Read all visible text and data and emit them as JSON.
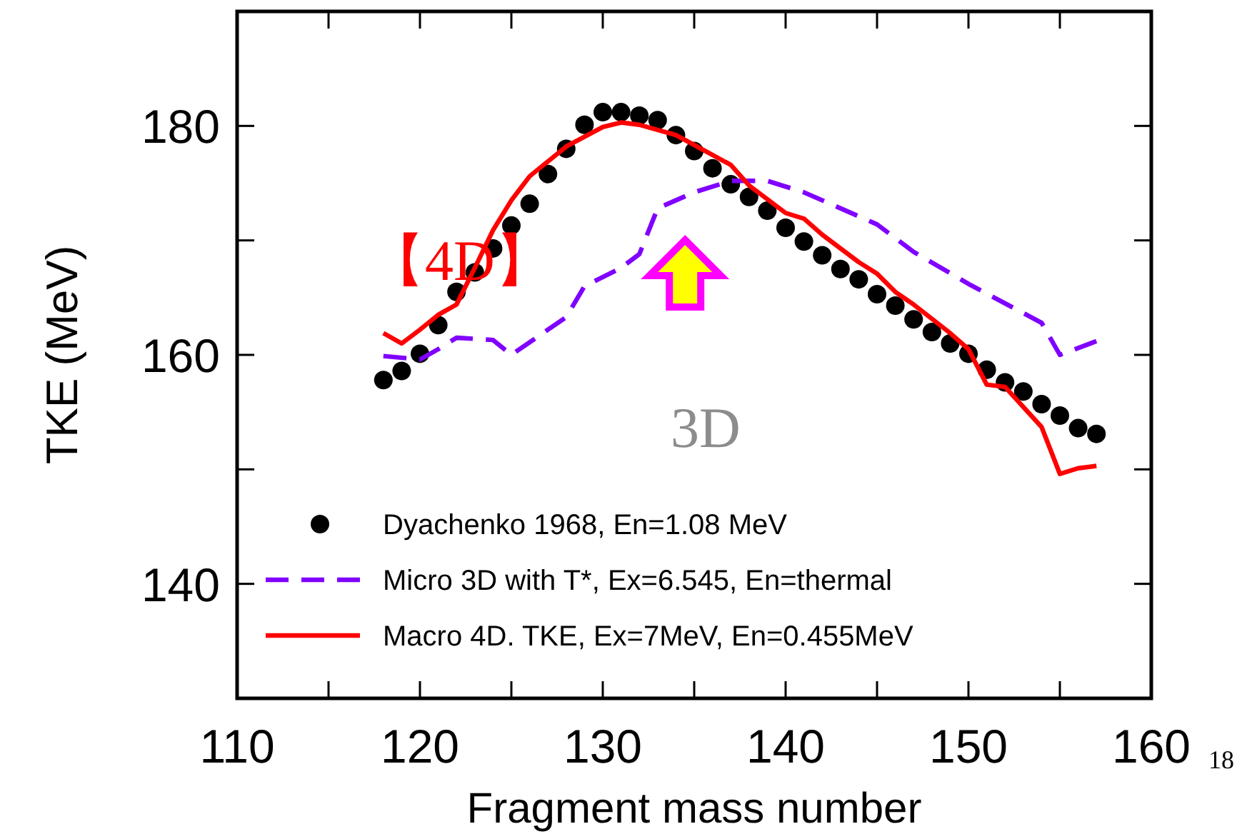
{
  "chart_data": {
    "type": "line",
    "xlabel": "Fragment mass number",
    "ylabel": "TKE (MeV)",
    "xlim": [
      110,
      160
    ],
    "ylim": [
      130,
      190
    ],
    "xticks": [
      110,
      {
        "value": 115,
        "label": null
      },
      120,
      {
        "value": 125,
        "label": null
      },
      130,
      {
        "value": 135,
        "label": null
      },
      140,
      {
        "value": 145,
        "label": null
      },
      150,
      {
        "value": 155,
        "label": null
      },
      160
    ],
    "yticks": [
      {
        "value": 130,
        "label": null
      },
      140,
      {
        "value": 150,
        "label": null
      },
      160,
      {
        "value": 170,
        "label": null
      },
      180,
      {
        "value": 190,
        "label": null
      }
    ],
    "legend": "bottom left",
    "grid": false,
    "series": [
      {
        "name": "Dyachenko 1968, En=1.08 MeV",
        "type": "scatter",
        "marker": "circle",
        "color": "#000000",
        "x": [
          118,
          119,
          120,
          121,
          122,
          123,
          124,
          125,
          126,
          127,
          128,
          129,
          130,
          131,
          132,
          133,
          134,
          135,
          136,
          137,
          138,
          139,
          140,
          141,
          142,
          143,
          144,
          145,
          146,
          147,
          148,
          149,
          150,
          151,
          152,
          153,
          154,
          155,
          156,
          157
        ],
        "values": [
          157.8,
          158.6,
          160.1,
          162.6,
          165.5,
          167.2,
          169.3,
          171.3,
          173.2,
          175.8,
          178.0,
          180.1,
          181.2,
          181.2,
          180.9,
          180.5,
          179.2,
          177.8,
          176.3,
          174.9,
          173.8,
          172.6,
          171.1,
          169.9,
          168.7,
          167.5,
          166.6,
          165.3,
          164.3,
          163.1,
          162.0,
          161.0,
          160.1,
          158.7,
          157.6,
          156.8,
          155.7,
          154.7,
          153.6,
          153.1
        ]
      },
      {
        "name": "Micro 3D with T*, Ex=6.545, En=thermal",
        "type": "line",
        "line_style": "dashed",
        "color": "#8000ff",
        "x": [
          118,
          120,
          121,
          122,
          124,
          125,
          128,
          129,
          131,
          132,
          133,
          135,
          137,
          139,
          141,
          143,
          145,
          147,
          150,
          152,
          154,
          155,
          157
        ],
        "values": [
          159.9,
          159.6,
          160.5,
          161.5,
          161.3,
          160.0,
          163.3,
          166.0,
          167.6,
          168.8,
          172.8,
          174.2,
          175.2,
          175.2,
          174.2,
          172.8,
          171.4,
          169.0,
          166.2,
          164.5,
          162.8,
          160.0,
          161.2
        ]
      },
      {
        "name": "Macro 4D. TKE, Ex=7MeV, En=0.455MeV",
        "type": "line",
        "line_style": "solid",
        "color": "#ff0000",
        "x": [
          118,
          119,
          120,
          121,
          122,
          123,
          124,
          125,
          126,
          128,
          130,
          131,
          132,
          134,
          137,
          138,
          140,
          141,
          142,
          144,
          145,
          146,
          147,
          149,
          150,
          151,
          152,
          154,
          155,
          156,
          157
        ],
        "values": [
          161.9,
          161.0,
          162.2,
          163.5,
          164.4,
          167.6,
          170.9,
          173.5,
          175.6,
          178.2,
          179.9,
          180.3,
          180.1,
          179.2,
          176.6,
          174.8,
          172.4,
          171.9,
          170.5,
          168.1,
          167.1,
          165.5,
          164.4,
          161.9,
          160.5,
          157.4,
          157.2,
          153.7,
          149.6,
          150.1,
          150.3
        ]
      }
    ],
    "annotations": [
      "【4D】",
      "3D",
      "18"
    ]
  }
}
